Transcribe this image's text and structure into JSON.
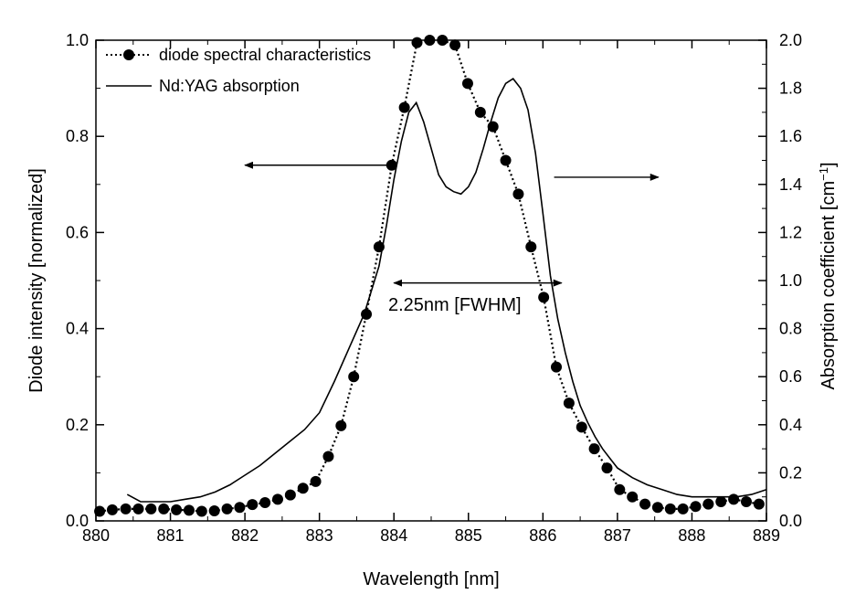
{
  "chart_data": {
    "type": "line",
    "xlabel": "Wavelength [nm]",
    "ylabel": "Diode intensity [normalized]",
    "y2label_prefix": "Absorption coefficient [cm",
    "y2label_sup": "−1",
    "y2label_suffix": "]",
    "xlim": [
      880,
      889
    ],
    "ylim": [
      0,
      1.0
    ],
    "y2lim": [
      0,
      2.0
    ],
    "xticks": [
      "880",
      "881",
      "882",
      "883",
      "884",
      "885",
      "886",
      "887",
      "888",
      "889"
    ],
    "yticks": [
      "0.0",
      "0.2",
      "0.4",
      "0.6",
      "0.8",
      "1.0"
    ],
    "y2ticks": [
      "0.0",
      "0.2",
      "0.4",
      "0.6",
      "0.8",
      "1.0",
      "1.2",
      "1.4",
      "1.6",
      "1.8",
      "2.0"
    ],
    "grid": false,
    "legend_position": "top-left",
    "annotation": "2.25nm [FWHM]",
    "fwhm_range": [
      884.0,
      886.25
    ],
    "fwhm_level": 0.495,
    "left_arrow": {
      "from": 884.0,
      "to": 882.0,
      "level": 0.74,
      "axis": "left"
    },
    "right_arrow": {
      "from": 886.15,
      "to": 887.55,
      "level": 1.43,
      "axis": "right"
    },
    "series": [
      {
        "name": "diode spectral characteristics",
        "style": "dotted-with-circles",
        "axis": "left",
        "color": "#000000",
        "x": [
          880.05,
          880.22,
          880.4,
          880.57,
          880.74,
          880.91,
          881.08,
          881.25,
          881.42,
          881.59,
          881.76,
          881.93,
          882.1,
          882.27,
          882.44,
          882.61,
          882.78,
          882.95,
          883.12,
          883.29,
          883.46,
          883.63,
          883.8,
          883.97,
          884.14,
          884.31,
          884.48,
          884.65,
          884.82,
          884.99,
          885.16,
          885.33,
          885.5,
          885.67,
          885.84,
          886.01,
          886.18,
          886.35,
          886.52,
          886.69,
          886.86,
          887.03,
          887.2,
          887.37,
          887.54,
          887.71,
          887.88,
          888.05,
          888.22,
          888.39,
          888.56,
          888.73,
          888.9
        ],
        "values": [
          0.02,
          0.023,
          0.025,
          0.025,
          0.025,
          0.025,
          0.023,
          0.022,
          0.02,
          0.021,
          0.025,
          0.028,
          0.034,
          0.038,
          0.045,
          0.054,
          0.068,
          0.082,
          0.134,
          0.198,
          0.3,
          0.43,
          0.57,
          0.74,
          0.86,
          0.995,
          1.0,
          1.0,
          0.99,
          0.91,
          0.85,
          0.82,
          0.75,
          0.68,
          0.57,
          0.465,
          0.32,
          0.245,
          0.195,
          0.15,
          0.11,
          0.065,
          0.05,
          0.035,
          0.028,
          0.025,
          0.025,
          0.03,
          0.035,
          0.04,
          0.045,
          0.04,
          0.035
        ]
      },
      {
        "name": "Nd:YAG absorption",
        "style": "solid",
        "axis": "right",
        "color": "#000000",
        "x": [
          880.42,
          880.6,
          880.8,
          881.0,
          881.2,
          881.4,
          881.6,
          881.8,
          882.0,
          882.2,
          882.4,
          882.6,
          882.8,
          883.0,
          883.2,
          883.4,
          883.6,
          883.8,
          883.9,
          884.0,
          884.1,
          884.2,
          884.3,
          884.4,
          884.5,
          884.6,
          884.7,
          884.8,
          884.9,
          885.0,
          885.1,
          885.2,
          885.3,
          885.4,
          885.5,
          885.6,
          885.7,
          885.8,
          885.9,
          886.0,
          886.1,
          886.2,
          886.3,
          886.4,
          886.5,
          886.6,
          886.7,
          886.8,
          886.9,
          887.0,
          887.2,
          887.4,
          887.6,
          887.8,
          888.0,
          888.2,
          888.4,
          888.6,
          888.8,
          889.0
        ],
        "values": [
          0.11,
          0.08,
          0.08,
          0.08,
          0.09,
          0.1,
          0.12,
          0.15,
          0.19,
          0.23,
          0.28,
          0.33,
          0.38,
          0.45,
          0.58,
          0.72,
          0.86,
          1.06,
          1.23,
          1.42,
          1.58,
          1.7,
          1.74,
          1.66,
          1.55,
          1.44,
          1.39,
          1.37,
          1.36,
          1.39,
          1.45,
          1.55,
          1.66,
          1.76,
          1.82,
          1.84,
          1.8,
          1.71,
          1.53,
          1.28,
          1.02,
          0.84,
          0.7,
          0.58,
          0.48,
          0.41,
          0.35,
          0.3,
          0.26,
          0.22,
          0.18,
          0.15,
          0.13,
          0.11,
          0.1,
          0.1,
          0.1,
          0.1,
          0.11,
          0.13
        ]
      }
    ]
  }
}
